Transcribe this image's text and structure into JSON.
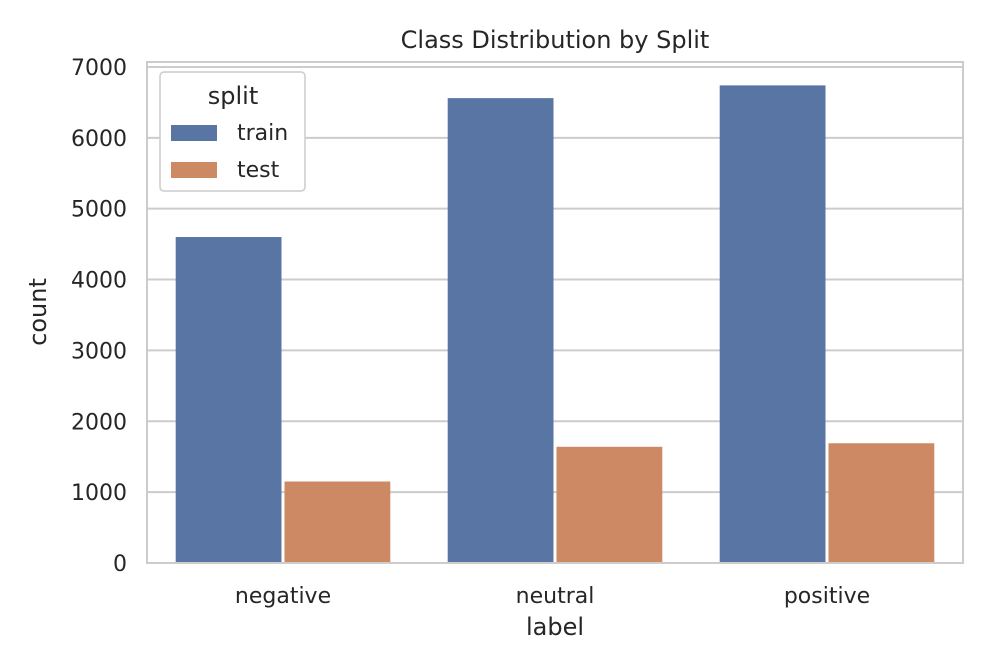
{
  "chart_data": {
    "type": "bar",
    "title": "Class Distribution by Split",
    "xlabel": "label",
    "ylabel": "count",
    "categories": [
      "negative",
      "neutral",
      "positive"
    ],
    "series": [
      {
        "name": "train",
        "values": [
          4600,
          6560,
          6740
        ]
      },
      {
        "name": "test",
        "values": [
          1150,
          1640,
          1690
        ]
      }
    ],
    "ylim": [
      0,
      7070
    ],
    "yticks": [
      0,
      1000,
      2000,
      3000,
      4000,
      5000,
      6000,
      7000
    ],
    "grid": true,
    "legend": {
      "title": "split",
      "position": "top-left"
    },
    "colors": {
      "train": "#5875a4",
      "test": "#cc8963",
      "grid": "#cccccc",
      "axes": "#cccccc",
      "background": "#ffffff"
    }
  }
}
